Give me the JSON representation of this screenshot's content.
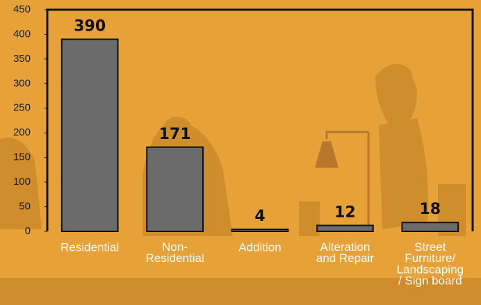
{
  "chart_data": {
    "type": "bar",
    "categories": [
      "Residential",
      "Non-\nResidential",
      "Addition",
      "Alteration\nand Repair",
      "Street\nFurniture/\nLandscaping\n/ Sign board"
    ],
    "values": [
      390,
      171,
      4,
      12,
      18
    ],
    "color": "#6b6b6b",
    "ylim": [
      0,
      450
    ],
    "yticks": [
      0,
      50,
      100,
      150,
      200,
      250,
      300,
      350,
      400,
      450
    ],
    "grid": false
  }
}
